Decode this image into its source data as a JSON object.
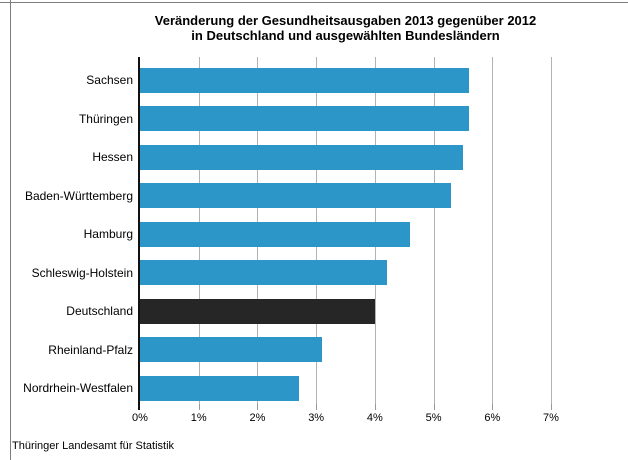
{
  "chart": {
    "title_line1": "Veränderung der Gesundheitsausgaben 2013 gegenüber 2012",
    "title_line2": "in Deutschland und ausgewählten Bundesländern"
  },
  "footer": {
    "source": "Thüringer Landesamt für Statistik"
  },
  "chart_data": {
    "type": "bar",
    "orientation": "horizontal",
    "title": "Veränderung der Gesundheitsausgaben 2013 gegenüber 2012 in Deutschland und ausgewählten Bundesländern",
    "categories": [
      "Sachsen",
      "Thüringen",
      "Hessen",
      "Baden-Württemberg",
      "Hamburg",
      "Schleswig-Holstein",
      "Deutschland",
      "Rheinland-Pfalz",
      "Nordrhein-Westfalen"
    ],
    "values": [
      5.6,
      5.6,
      5.5,
      5.3,
      4.6,
      4.2,
      4.0,
      3.1,
      2.7
    ],
    "unit": "%",
    "highlight_category": "Deutschland",
    "bar_color": "#2D96C8",
    "highlight_color": "#262626",
    "xlim": [
      0,
      7
    ],
    "xtick_labels": [
      "0%",
      "1%",
      "2%",
      "3%",
      "4%",
      "5%",
      "6%",
      "7%"
    ],
    "grid": "vertical",
    "legend": "none",
    "source": "Thüringer Landesamt für Statistik"
  }
}
